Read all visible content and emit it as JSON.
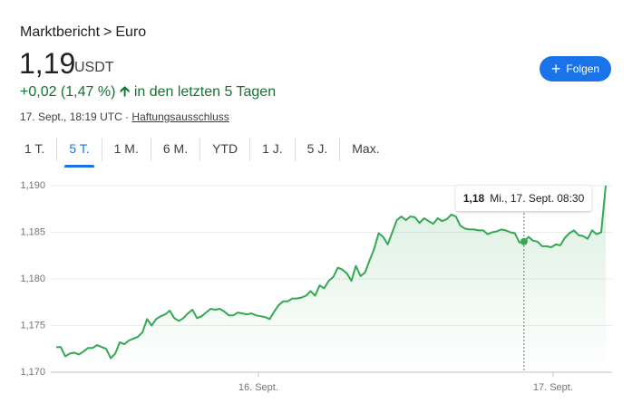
{
  "header": {
    "breadcrumb": [
      "Marktbericht",
      ">",
      "Euro"
    ],
    "price": "1,19",
    "currency": "USDT",
    "change": "+0,02 (1,47 %)",
    "period": "in den letzten 5 Tagen",
    "timestamp": "17. Sept., 18:19 UTC ·",
    "disclaimer": "Haftungsausschluss",
    "follow_button": "Folgen"
  },
  "tabs": {
    "items": [
      "1 T.",
      "5 T.",
      "1 M.",
      "6 M.",
      "YTD",
      "1 J.",
      "5 J.",
      "Max."
    ],
    "active": 1
  },
  "chart_data": {
    "type": "line",
    "series": [
      {
        "name": "Euro",
        "color": "#34a853",
        "values": [
          1.1727,
          1.1727,
          1.1717,
          1.172,
          1.1721,
          1.1719,
          1.1722,
          1.1726,
          1.1726,
          1.1729,
          1.1727,
          1.1725,
          1.1715,
          1.172,
          1.1732,
          1.173,
          1.1734,
          1.1736,
          1.1738,
          1.1743,
          1.1757,
          1.175,
          1.1757,
          1.176,
          1.1762,
          1.1766,
          1.1758,
          1.1755,
          1.1758,
          1.1763,
          1.1767,
          1.1758,
          1.176,
          1.1764,
          1.1768,
          1.1767,
          1.1768,
          1.1765,
          1.1761,
          1.1761,
          1.1764,
          1.1763,
          1.1762,
          1.1763,
          1.1761,
          1.176,
          1.1759,
          1.1757,
          1.1765,
          1.1772,
          1.1776,
          1.1776,
          1.1779,
          1.1779,
          1.178,
          1.1782,
          1.1787,
          1.1782,
          1.1793,
          1.179,
          1.1798,
          1.1802,
          1.1812,
          1.181,
          1.1806,
          1.1798,
          1.1814,
          1.1803,
          1.1807,
          1.182,
          1.1832,
          1.1849,
          1.1845,
          1.1837,
          1.185,
          1.1863,
          1.1867,
          1.1863,
          1.1867,
          1.1866,
          1.186,
          1.1865,
          1.1862,
          1.1859,
          1.1865,
          1.1862,
          1.1864,
          1.1869,
          1.1867,
          1.1857,
          1.1854,
          1.1853,
          1.1853,
          1.1852,
          1.1852,
          1.1848,
          1.185,
          1.1851,
          1.1853,
          1.1852,
          1.185,
          1.1849,
          1.1839,
          1.184,
          1.1845,
          1.1841,
          1.184,
          1.1835,
          1.1835,
          1.1834,
          1.1837,
          1.1836,
          1.1844,
          1.1849,
          1.1852,
          1.1847,
          1.1846,
          1.1843,
          1.1852,
          1.1848,
          1.185,
          1.19
        ]
      }
    ],
    "xlim": [
      0,
      121
    ],
    "xticks": [
      {
        "value": 44.5,
        "label": "16. Sept."
      },
      {
        "value": 109.4,
        "label": "17. Sept."
      }
    ],
    "ylim": [
      1.17,
      1.19
    ],
    "yticks": [
      {
        "value": 1.17,
        "label": "1,170"
      },
      {
        "value": 1.175,
        "label": "1,175"
      },
      {
        "value": 1.18,
        "label": "1,180"
      },
      {
        "value": 1.185,
        "label": "1,185"
      },
      {
        "value": 1.19,
        "label": "1,190"
      }
    ],
    "grid": true,
    "tooltip": {
      "x": 103,
      "value_label": "1,18",
      "date": "Mi., 17. Sept. 08:30"
    }
  }
}
